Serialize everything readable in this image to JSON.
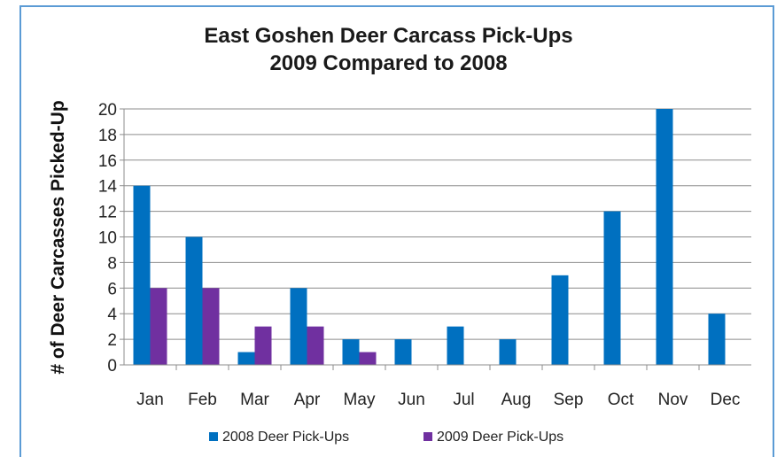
{
  "chart_data": {
    "type": "bar",
    "title": "East Goshen Deer Carcass Pick-Ups",
    "subtitle": "2009 Compared to 2008",
    "xlabel": "",
    "ylabel": "# of Deer Carcasses Picked-Up",
    "ylim": [
      0,
      20
    ],
    "yticks": [
      0,
      2,
      4,
      6,
      8,
      10,
      12,
      14,
      16,
      18,
      20
    ],
    "grid": true,
    "legend": "bottom",
    "categories": [
      "Jan",
      "Feb",
      "Mar",
      "Apr",
      "May",
      "Jun",
      "Jul",
      "Aug",
      "Sep",
      "Oct",
      "Nov",
      "Dec"
    ],
    "series": [
      {
        "name": "2008 Deer Pick-Ups",
        "color": "#0070c0",
        "values": [
          14,
          10,
          1,
          6,
          2,
          2,
          3,
          2,
          7,
          12,
          20,
          4
        ]
      },
      {
        "name": "2009 Deer Pick-Ups",
        "color": "#7030a0",
        "values": [
          6,
          6,
          3,
          3,
          1,
          null,
          null,
          null,
          null,
          null,
          null,
          null
        ]
      }
    ]
  }
}
